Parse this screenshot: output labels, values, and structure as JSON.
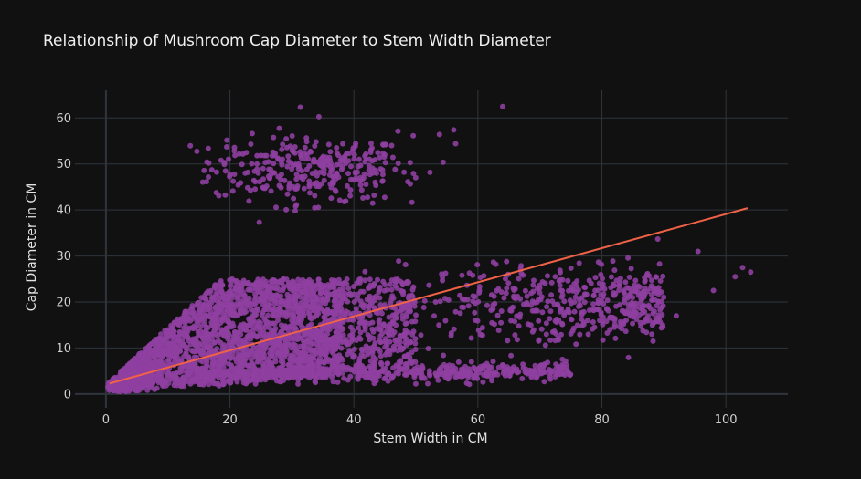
{
  "chart_data": {
    "type": "scatter",
    "title": "Relationship of Mushroom Cap Diameter to Stem Width Diameter",
    "xlabel": "Stem Width in CM",
    "ylabel": "Cap Diameter in CM",
    "xlim": [
      -5,
      110
    ],
    "ylim": [
      -3,
      66
    ],
    "x_ticks": [
      0,
      20,
      40,
      60,
      80,
      100
    ],
    "y_ticks": [
      0,
      10,
      20,
      30,
      40,
      50,
      60
    ],
    "grid": true,
    "legend": "none",
    "colors": {
      "background": "#111111",
      "grid": "#2f353d",
      "points": "#8e3fa0",
      "trendline": "#ef6247"
    },
    "trendline": {
      "x": [
        0.6,
        103.5
      ],
      "y": [
        2.3,
        40.4
      ]
    },
    "clusters": [
      {
        "name": "upper-group",
        "x_range": [
          13,
          55
        ],
        "y_center": 49,
        "y_spread": 5,
        "count": 320,
        "density_peak_x": 33
      },
      {
        "name": "main-group",
        "x_range": [
          0.3,
          50
        ],
        "slope": 0.55,
        "count": 2600
      },
      {
        "name": "lower-band",
        "x_range": [
          15,
          75
        ],
        "y_center": 4,
        "y_spread": 1.5,
        "count": 500
      },
      {
        "name": "right-group",
        "x_range": [
          45,
          90
        ],
        "y_center": 19,
        "y_spread": 4,
        "count": 450
      }
    ],
    "outliers": {
      "x": [
        64,
        95.5,
        101.5,
        104,
        98,
        88,
        92,
        102.7,
        86.3,
        83.8,
        66.6,
        62.9,
        56.4,
        53.8,
        56.1,
        47.2,
        41.8,
        59.9,
        60.2
      ],
      "y": [
        62.5,
        31,
        25.5,
        26.5,
        22.5,
        23.5,
        17,
        27.5,
        21.7,
        24.3,
        14.8,
        28.2,
        54.4,
        56.4,
        57.4,
        28.9,
        26.6,
        28.1,
        22
      ]
    }
  }
}
